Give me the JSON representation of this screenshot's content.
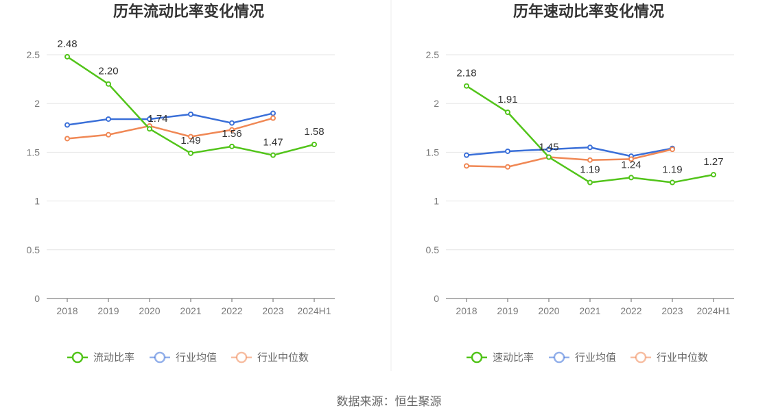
{
  "source": "数据来源：恒生聚源",
  "chart_data": [
    {
      "type": "line",
      "title": "历年流动比率变化情况",
      "categories": [
        "2018",
        "2019",
        "2020",
        "2021",
        "2022",
        "2023",
        "2024H1"
      ],
      "ylim": [
        0,
        2.5
      ],
      "yticks": [
        "0",
        "0.5",
        "1",
        "1.5",
        "2",
        "2.5"
      ],
      "grid": true,
      "legend_position": "bottom",
      "series": [
        {
          "name": "流动比率",
          "color": "#52c41a",
          "values": [
            2.48,
            2.2,
            1.74,
            1.49,
            1.56,
            1.47,
            1.58
          ],
          "labels": [
            "2.48",
            "2.20",
            "1.74",
            "1.49",
            "1.56",
            "1.47",
            "1.58"
          ]
        },
        {
          "name": "行业均值",
          "color": "#3a6fd8",
          "values": [
            1.78,
            1.84,
            1.84,
            1.89,
            1.8,
            1.9,
            null
          ]
        },
        {
          "name": "行业中位数",
          "color": "#f08855",
          "values": [
            1.64,
            1.68,
            1.77,
            1.66,
            1.73,
            1.85,
            null
          ]
        }
      ]
    },
    {
      "type": "line",
      "title": "历年速动比率变化情况",
      "categories": [
        "2018",
        "2019",
        "2020",
        "2021",
        "2022",
        "2023",
        "2024H1"
      ],
      "ylim": [
        0,
        2.5
      ],
      "yticks": [
        "0",
        "0.5",
        "1",
        "1.5",
        "2",
        "2.5"
      ],
      "grid": true,
      "legend_position": "bottom",
      "series": [
        {
          "name": "速动比率",
          "color": "#52c41a",
          "values": [
            2.18,
            1.91,
            1.45,
            1.19,
            1.24,
            1.19,
            1.27
          ],
          "labels": [
            "2.18",
            "1.91",
            "1.45",
            "1.19",
            "1.24",
            "1.19",
            "1.27"
          ]
        },
        {
          "name": "行业均值",
          "color": "#3a6fd8",
          "values": [
            1.47,
            1.51,
            1.53,
            1.55,
            1.46,
            1.54,
            null
          ]
        },
        {
          "name": "行业中位数",
          "color": "#f08855",
          "values": [
            1.36,
            1.35,
            1.45,
            1.42,
            1.43,
            1.53,
            null
          ]
        }
      ]
    }
  ]
}
